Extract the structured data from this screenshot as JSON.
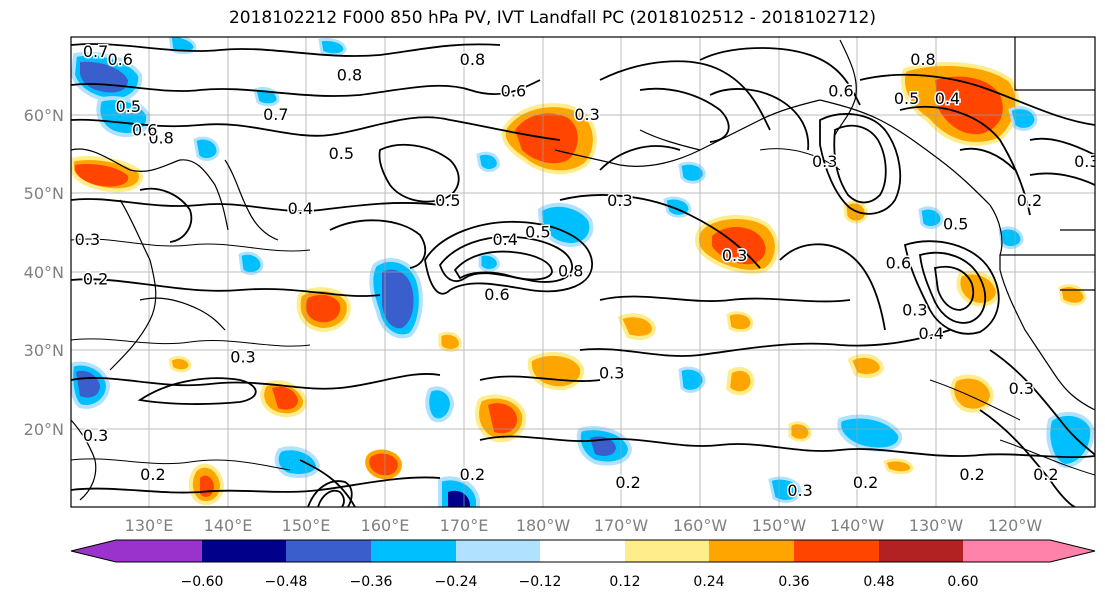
{
  "title": "2018102212 F000 850 hPa PV, IVT Landfall PC (2018102512 - 2018102712)",
  "map": {
    "lon_range": [
      120,
      245
    ],
    "lat_range": [
      10,
      70
    ],
    "lat_labels": [
      "20°N",
      "30°N",
      "40°N",
      "50°N",
      "60°N"
    ],
    "lon_labels": [
      "130°E",
      "140°E",
      "150°E",
      "160°E",
      "170°E",
      "180°W",
      "170°W",
      "160°W",
      "150°W",
      "140°W",
      "130°W",
      "120°W"
    ]
  },
  "colorbar": {
    "tick_labels": [
      "−0.60",
      "−0.48",
      "−0.36",
      "−0.24",
      "−0.12",
      "0.12",
      "0.24",
      "0.36",
      "0.48",
      "0.60"
    ],
    "colors": [
      "#9933cc",
      "#00008b",
      "#3a5fcd",
      "#00bfff",
      "#b0e2ff",
      "#ffffff",
      "#ffec8b",
      "#ffa500",
      "#ff4500",
      "#b22222",
      "#ff82ab"
    ]
  },
  "contour_labels": [
    {
      "text": "0.7",
      "lon": 123,
      "lat": 68
    },
    {
      "text": "0.6",
      "lon": 126,
      "lat": 67
    },
    {
      "text": "0.5",
      "lon": 127,
      "lat": 61
    },
    {
      "text": "0.8",
      "lon": 131,
      "lat": 57
    },
    {
      "text": "0.6",
      "lon": 129,
      "lat": 58
    },
    {
      "text": "0.8",
      "lon": 154,
      "lat": 65
    },
    {
      "text": "0.7",
      "lon": 145,
      "lat": 60
    },
    {
      "text": "0.5",
      "lon": 153,
      "lat": 55
    },
    {
      "text": "0.8",
      "lon": 169,
      "lat": 67
    },
    {
      "text": "0.6",
      "lon": 174,
      "lat": 63
    },
    {
      "text": "0.3",
      "lon": 183,
      "lat": 60
    },
    {
      "text": "0.5",
      "lon": 166,
      "lat": 49
    },
    {
      "text": "0.4",
      "lon": 148,
      "lat": 48
    },
    {
      "text": "0.3",
      "lon": 187,
      "lat": 49
    },
    {
      "text": "0.5",
      "lon": 222,
      "lat": 62
    },
    {
      "text": "0.4",
      "lon": 227,
      "lat": 62
    },
    {
      "text": "0.3",
      "lon": 212,
      "lat": 54
    },
    {
      "text": "0.6",
      "lon": 214,
      "lat": 63
    },
    {
      "text": "0.8",
      "lon": 224,
      "lat": 67
    },
    {
      "text": "0.3",
      "lon": 244,
      "lat": 54
    },
    {
      "text": "0.2",
      "lon": 237,
      "lat": 49
    },
    {
      "text": "0.5",
      "lon": 228,
      "lat": 46
    },
    {
      "text": "0.6",
      "lon": 221,
      "lat": 41
    },
    {
      "text": "0.3",
      "lon": 201,
      "lat": 42
    },
    {
      "text": "0.4",
      "lon": 173,
      "lat": 44
    },
    {
      "text": "0.5",
      "lon": 177,
      "lat": 45
    },
    {
      "text": "0.8",
      "lon": 181,
      "lat": 40
    },
    {
      "text": "0.6",
      "lon": 172,
      "lat": 37
    },
    {
      "text": "0.4",
      "lon": 225,
      "lat": 32
    },
    {
      "text": "0.3",
      "lon": 223,
      "lat": 35
    },
    {
      "text": "0.3",
      "lon": 141,
      "lat": 29
    },
    {
      "text": "0.3",
      "lon": 186,
      "lat": 27
    },
    {
      "text": "0.3",
      "lon": 123,
      "lat": 19
    },
    {
      "text": "0.2",
      "lon": 130,
      "lat": 14
    },
    {
      "text": "0.2",
      "lon": 169,
      "lat": 14
    },
    {
      "text": "0.2",
      "lon": 188,
      "lat": 13
    },
    {
      "text": "0.3",
      "lon": 209,
      "lat": 12
    },
    {
      "text": "0.2",
      "lon": 217,
      "lat": 13
    },
    {
      "text": "0.2",
      "lon": 230,
      "lat": 14
    },
    {
      "text": "0.2",
      "lon": 239,
      "lat": 14
    },
    {
      "text": "0.3",
      "lon": 236,
      "lat": 25
    },
    {
      "text": "0.2",
      "lon": 123,
      "lat": 39
    },
    {
      "text": "0.3",
      "lon": 122,
      "lat": 44
    }
  ]
}
